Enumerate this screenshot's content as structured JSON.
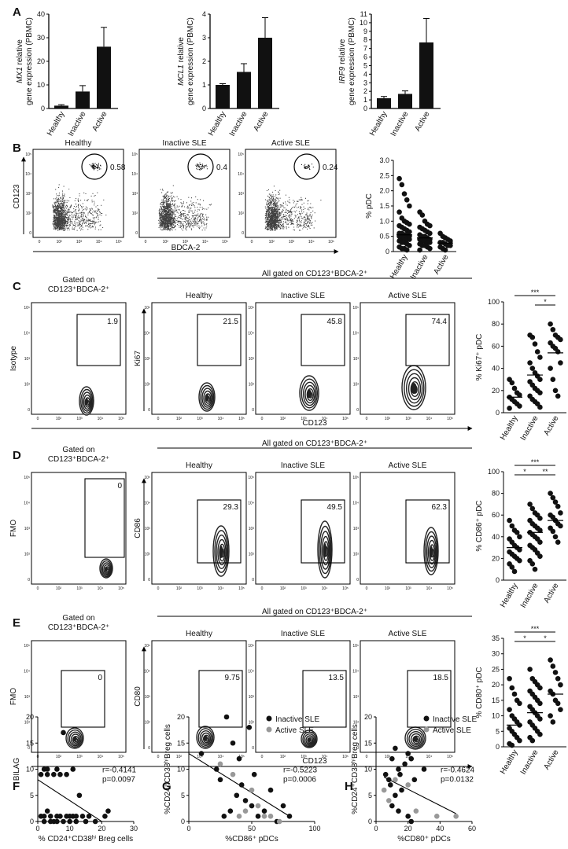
{
  "panels": {
    "A": {
      "label": "A",
      "charts": [
        {
          "gene": "MX1",
          "ylabel_rest": " relative",
          "ylabel2": "gene expression (PBMC)",
          "categories": [
            "Healthy",
            "Inactive",
            "Active"
          ],
          "values": [
            1.2,
            7.2,
            26.2
          ],
          "errors": [
            0.4,
            2.5,
            8.2
          ],
          "ylim": [
            0,
            40
          ],
          "ticks": [
            "0",
            "10",
            "20",
            "30",
            "40"
          ]
        },
        {
          "gene": "MCL1",
          "ylabel_rest": " relative",
          "ylabel2": "gene expression (PBMC)",
          "categories": [
            "Healthy",
            "Inactive",
            "Active"
          ],
          "values": [
            1.0,
            1.55,
            3.0
          ],
          "errors": [
            0.05,
            0.35,
            0.85
          ],
          "ylim": [
            0,
            4
          ],
          "ticks": [
            "0",
            "1",
            "2",
            "3",
            "4"
          ]
        },
        {
          "gene": "IRF9",
          "ylabel_rest": " relative",
          "ylabel2": "gene expression (PBMC)",
          "categories": [
            "Healthy",
            "Inactive",
            "Active"
          ],
          "values": [
            1.2,
            1.7,
            7.7
          ],
          "errors": [
            0.2,
            0.35,
            2.8
          ],
          "ylim": [
            0,
            11
          ],
          "ticks": [
            "0",
            "1",
            "2",
            "3",
            "4",
            "5",
            "6",
            "7",
            "8",
            "9",
            "10",
            "11"
          ]
        }
      ]
    },
    "B": {
      "label": "B",
      "plots": [
        {
          "title": "Healthy",
          "value": "0.58"
        },
        {
          "title": "Inactive SLE",
          "value": "0.4"
        },
        {
          "title": "Active SLE",
          "value": "0.24"
        }
      ],
      "ylabel": "CD123",
      "xlabel": "BDCA-2",
      "scatter": {
        "ylabel": "% pDC",
        "ylim": [
          0,
          3.0
        ],
        "ticks": [
          "0",
          "0.5",
          "1.0",
          "1.5",
          "2.0",
          "2.5",
          "3.0"
        ],
        "categories": [
          "Healthy",
          "Inactive",
          "Active"
        ],
        "means": [
          0.55,
          0.45,
          0.28
        ],
        "groups": [
          [
            2.4,
            2.2,
            1.9,
            1.7,
            1.5,
            1.3,
            1.1,
            1.0,
            0.95,
            0.9,
            0.85,
            0.8,
            0.75,
            0.7,
            0.65,
            0.6,
            0.6,
            0.55,
            0.55,
            0.5,
            0.5,
            0.45,
            0.45,
            0.4,
            0.4,
            0.35,
            0.3,
            0.3,
            0.25,
            0.2,
            0.15,
            0.1,
            0.1,
            0.05
          ],
          [
            1.3,
            1.2,
            1.0,
            0.9,
            0.85,
            0.8,
            0.75,
            0.7,
            0.65,
            0.6,
            0.55,
            0.5,
            0.5,
            0.45,
            0.4,
            0.4,
            0.35,
            0.35,
            0.3,
            0.3,
            0.25,
            0.2,
            0.2,
            0.15,
            0.1,
            0.05
          ],
          [
            0.6,
            0.5,
            0.45,
            0.4,
            0.35,
            0.3,
            0.3,
            0.25,
            0.2,
            0.2,
            0.15,
            0.1,
            0.05
          ]
        ]
      }
    },
    "C": {
      "label": "C",
      "gated_line1": "Gated on",
      "gated_line2": "CD123⁺BDCA-2⁺",
      "all_gated": "All gated on CD123⁺BDCA-2⁺",
      "first_ylabel": "Isotype",
      "ylabel": "Ki67",
      "xlabel": "CD123",
      "plots": [
        {
          "title": "",
          "value": "1.9"
        },
        {
          "title": "Healthy",
          "value": "21.5"
        },
        {
          "title": "Inactive SLE",
          "value": "45.8"
        },
        {
          "title": "Active SLE",
          "value": "74.4"
        }
      ],
      "scatter": {
        "ylabel": "% Ki67⁺ pDC",
        "ylim": [
          0,
          100
        ],
        "ticks": [
          "0",
          "20",
          "40",
          "60",
          "80",
          "100"
        ],
        "categories": [
          "Healthy",
          "Inactive",
          "Active"
        ],
        "means": [
          14,
          34,
          54
        ],
        "sig": [
          "***",
          "*"
        ],
        "groups": [
          [
            30,
            27,
            22,
            18,
            16,
            14,
            12,
            10,
            8,
            6,
            4
          ],
          [
            70,
            68,
            62,
            55,
            50,
            45,
            40,
            36,
            33,
            30,
            28,
            25,
            22,
            20,
            18,
            15,
            12,
            10,
            8,
            5
          ],
          [
            80,
            75,
            70,
            68,
            66,
            63,
            60,
            58,
            55,
            45,
            40,
            30,
            20,
            15
          ]
        ]
      }
    },
    "D": {
      "label": "D",
      "gated_line1": "Gated on",
      "gated_line2": "CD123⁺BDCA-2⁺",
      "all_gated": "All gated on CD123⁺BDCA-2⁺",
      "first_ylabel": "FMO",
      "ylabel": "CD86",
      "plots": [
        {
          "title": "",
          "value": "0"
        },
        {
          "title": "Healthy",
          "value": "29.3"
        },
        {
          "title": "Inactive SLE",
          "value": "49.5"
        },
        {
          "title": "Active SLE",
          "value": "62.3"
        }
      ],
      "scatter": {
        "ylabel": "% CD86⁺ pDC",
        "ylim": [
          0,
          100
        ],
        "ticks": [
          "0",
          "20",
          "40",
          "60",
          "80",
          "100"
        ],
        "categories": [
          "Healthy",
          "Inactive",
          "Active"
        ],
        "means": [
          30,
          44,
          55
        ],
        "sig": [
          "***",
          "*",
          "**"
        ],
        "groups": [
          [
            55,
            50,
            46,
            44,
            40,
            38,
            35,
            32,
            30,
            28,
            26,
            24,
            22,
            20,
            18,
            15,
            12,
            8
          ],
          [
            70,
            66,
            62,
            60,
            57,
            55,
            52,
            50,
            48,
            46,
            44,
            42,
            40,
            38,
            35,
            32,
            30,
            28,
            25,
            22,
            18,
            15,
            10
          ],
          [
            80,
            76,
            72,
            68,
            62,
            60,
            58,
            55,
            52,
            50,
            48,
            45,
            40,
            35
          ]
        ]
      }
    },
    "E": {
      "label": "E",
      "gated_line1": "Gated on",
      "gated_line2": "CD123⁺BDCA-2⁺",
      "all_gated": "All gated on CD123⁺BDCA-2⁺",
      "first_ylabel": "FMO",
      "ylabel": "CD80",
      "xlabel": "CD123",
      "plots": [
        {
          "title": "",
          "value": "0"
        },
        {
          "title": "Healthy",
          "value": "9.75"
        },
        {
          "title": "Inactive SLE",
          "value": "13.5"
        },
        {
          "title": "Active SLE",
          "value": "18.5"
        }
      ],
      "scatter": {
        "ylabel": "% CD80⁺ pDC",
        "ylim": [
          0,
          35
        ],
        "ticks": [
          "0",
          "5",
          "10",
          "15",
          "20",
          "25",
          "30",
          "35"
        ],
        "categories": [
          "Healthy",
          "Inactive",
          "Active"
        ],
        "means": [
          7,
          11,
          17
        ],
        "sig": [
          "***",
          "*",
          "*"
        ],
        "groups": [
          [
            22,
            19,
            17,
            15,
            14,
            12,
            10,
            9,
            8,
            7,
            6,
            5,
            4,
            3,
            2,
            1,
            0.5
          ],
          [
            25,
            22,
            21,
            20,
            19,
            18,
            17,
            16,
            15,
            14,
            13,
            12,
            11,
            10,
            9,
            8,
            7,
            6,
            5,
            4,
            3,
            2
          ],
          [
            28,
            26,
            24,
            22,
            20,
            18,
            17,
            15,
            14,
            12,
            10,
            8
          ]
        ]
      }
    },
    "F": {
      "label": "F",
      "ylabel": "BILAG",
      "xlabel": "% CD24⁺CD38ʰⁱ Breg cells",
      "xlim": [
        0,
        30
      ],
      "ylim": [
        0,
        20
      ],
      "xticks": [
        "0",
        "10",
        "20",
        "30"
      ],
      "yticks": [
        "0",
        "5",
        "10",
        "15",
        "20"
      ],
      "r_text": "r=-0.4141",
      "p_text": "p=0.0097",
      "line": [
        [
          0,
          8
        ],
        [
          20,
          0
        ]
      ],
      "points": [
        [
          2,
          10
        ],
        [
          3,
          10
        ],
        [
          5,
          9
        ],
        [
          6,
          10
        ],
        [
          7,
          9
        ],
        [
          9,
          9
        ],
        [
          8,
          17
        ],
        [
          1,
          9
        ],
        [
          3,
          9
        ],
        [
          11,
          10
        ],
        [
          2,
          1
        ],
        [
          3,
          2
        ],
        [
          4,
          1
        ],
        [
          5,
          0
        ],
        [
          6,
          1
        ],
        [
          7,
          1
        ],
        [
          8,
          0
        ],
        [
          9,
          1
        ],
        [
          10,
          1
        ],
        [
          11,
          1
        ],
        [
          12,
          0
        ],
        [
          14,
          1
        ],
        [
          15,
          0
        ],
        [
          16,
          1
        ],
        [
          18,
          0
        ],
        [
          2,
          0
        ],
        [
          4,
          0
        ],
        [
          10,
          0
        ],
        [
          13,
          5
        ],
        [
          21,
          1
        ],
        [
          22,
          2
        ],
        [
          1,
          1
        ],
        [
          6,
          0
        ],
        [
          12,
          1
        ]
      ]
    },
    "G": {
      "label": "G",
      "ylabel": "%CD24⁺CD38ʰⁱBreg cells",
      "xlabel": "%CD86⁺ pDCs",
      "xlim": [
        0,
        100
      ],
      "ylim": [
        0,
        20
      ],
      "xticks": [
        "0",
        "50",
        "100"
      ],
      "yticks": [
        "0",
        "5",
        "10",
        "15",
        "20"
      ],
      "legend": [
        "Inactive SLE",
        "Active SLE"
      ],
      "r_text": "r=-0.5223",
      "p_text": "p=0.0006",
      "line": [
        [
          0,
          13
        ],
        [
          80,
          1
        ]
      ],
      "points_inactive": [
        [
          10,
          13
        ],
        [
          22,
          10
        ],
        [
          25,
          8
        ],
        [
          30,
          20
        ],
        [
          35,
          15
        ],
        [
          40,
          12
        ],
        [
          42,
          7
        ],
        [
          48,
          18
        ],
        [
          45,
          4
        ],
        [
          50,
          3
        ],
        [
          55,
          1
        ],
        [
          38,
          5
        ],
        [
          60,
          2
        ],
        [
          65,
          6
        ],
        [
          52,
          9
        ],
        [
          28,
          1
        ],
        [
          70,
          0
        ],
        [
          75,
          3
        ],
        [
          80,
          1
        ],
        [
          33,
          2
        ]
      ],
      "points_active": [
        [
          25,
          11
        ],
        [
          35,
          9
        ],
        [
          50,
          6
        ],
        [
          45,
          2
        ],
        [
          55,
          3
        ],
        [
          60,
          1
        ],
        [
          72,
          0
        ],
        [
          65,
          1
        ],
        [
          40,
          1
        ]
      ]
    },
    "H": {
      "label": "H",
      "ylabel": "%CD24⁺CD38ʰⁱBreg cells",
      "xlabel": "%CD80⁺ pDCs",
      "xlim": [
        0,
        60
      ],
      "ylim": [
        0,
        20
      ],
      "xticks": [
        "0",
        "20",
        "40",
        "60"
      ],
      "yticks": [
        "0",
        "5",
        "10",
        "15",
        "20"
      ],
      "legend": [
        "Inactive SLE",
        "Active SLE"
      ],
      "r_text": "r=-0.4624",
      "p_text": "p=0.0132",
      "line": [
        [
          5,
          8.5
        ],
        [
          50,
          1.5
        ]
      ],
      "points_inactive": [
        [
          8,
          8
        ],
        [
          10,
          12
        ],
        [
          12,
          14
        ],
        [
          14,
          10
        ],
        [
          15,
          9
        ],
        [
          18,
          11
        ],
        [
          20,
          13
        ],
        [
          22,
          12
        ],
        [
          24,
          8
        ],
        [
          16,
          6
        ],
        [
          12,
          5
        ],
        [
          10,
          3
        ],
        [
          14,
          2
        ],
        [
          20,
          1
        ],
        [
          22,
          0
        ],
        [
          9,
          7
        ],
        [
          6,
          9
        ],
        [
          30,
          10
        ]
      ],
      "points_active": [
        [
          5,
          6
        ],
        [
          12,
          8
        ],
        [
          20,
          7
        ],
        [
          25,
          2
        ],
        [
          38,
          1
        ],
        [
          50,
          1
        ],
        [
          8,
          4
        ]
      ]
    }
  }
}
